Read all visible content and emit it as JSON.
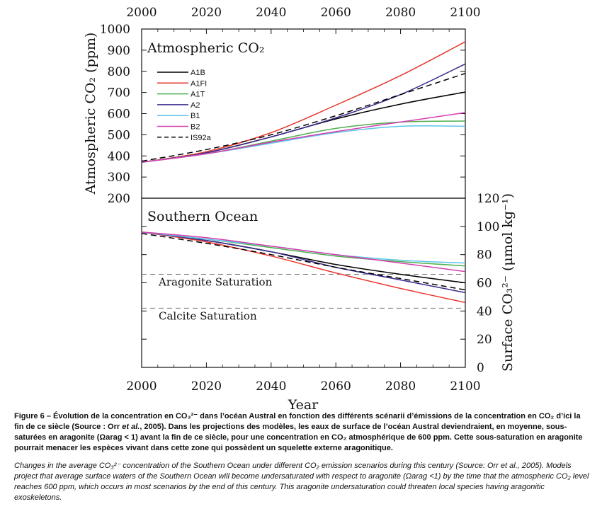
{
  "chart_data": [
    {
      "type": "line",
      "title": "Atmospheric CO₂",
      "ylabel": "Atmospheric CO₂ (ppm)",
      "xlabel": "",
      "xlim": [
        2000,
        2100
      ],
      "ylim": [
        200,
        1000
      ],
      "x_ticks": [
        "2000",
        "2020",
        "2040",
        "2060",
        "2080",
        "2100"
      ],
      "y_ticks": [
        "200",
        "300",
        "400",
        "500",
        "600",
        "700",
        "800",
        "900",
        "1000"
      ],
      "legend": "upper-left",
      "x": [
        2000,
        2020,
        2040,
        2060,
        2080,
        2100
      ],
      "series": [
        {
          "name": "A1B",
          "color": "#000000",
          "dash": false,
          "values": [
            370,
            415,
            490,
            575,
            645,
            702
          ]
        },
        {
          "name": "A1FI",
          "color": "#e8352e",
          "dash": false,
          "values": [
            370,
            420,
            510,
            640,
            780,
            940
          ]
        },
        {
          "name": "A1T",
          "color": "#4caf50",
          "dash": false,
          "values": [
            370,
            410,
            470,
            530,
            560,
            565
          ]
        },
        {
          "name": "A2",
          "color": "#3a2a8c",
          "dash": false,
          "values": [
            370,
            415,
            490,
            580,
            690,
            835
          ]
        },
        {
          "name": "B1",
          "color": "#5ec5e8",
          "dash": false,
          "values": [
            370,
            410,
            460,
            510,
            540,
            540
          ]
        },
        {
          "name": "B2",
          "color": "#d63fb0",
          "dash": false,
          "values": [
            370,
            410,
            465,
            515,
            560,
            605
          ]
        },
        {
          "name": "IS92a",
          "color": "#000000",
          "dash": true,
          "values": [
            375,
            430,
            500,
            590,
            690,
            790
          ]
        }
      ]
    },
    {
      "type": "line",
      "title": "Southern Ocean",
      "xlabel": "Year",
      "ylabel": "Surface CO₃²⁻ (μmol kg⁻¹)",
      "xlim": [
        2000,
        2100
      ],
      "ylim": [
        0,
        120
      ],
      "x_ticks": [
        "2000",
        "2020",
        "2040",
        "2060",
        "2080",
        "2100"
      ],
      "y_ticks": [
        "0",
        "20",
        "40",
        "60",
        "80",
        "100",
        "120"
      ],
      "x": [
        2000,
        2020,
        2040,
        2060,
        2080,
        2100
      ],
      "series": [
        {
          "name": "A1B",
          "color": "#000000",
          "dash": false,
          "values": [
            96,
            90,
            82,
            73,
            66,
            60
          ]
        },
        {
          "name": "A1FI",
          "color": "#e8352e",
          "dash": false,
          "values": [
            96,
            89,
            79,
            67,
            56,
            46
          ]
        },
        {
          "name": "A1T",
          "color": "#4caf50",
          "dash": false,
          "values": [
            96,
            91,
            85,
            79,
            75,
            72
          ]
        },
        {
          "name": "A2",
          "color": "#3a2a8c",
          "dash": false,
          "values": [
            96,
            90,
            82,
            71,
            62,
            53
          ]
        },
        {
          "name": "B1",
          "color": "#5ec5e8",
          "dash": false,
          "values": [
            96,
            91,
            86,
            80,
            76,
            74
          ]
        },
        {
          "name": "B2",
          "color": "#d63fb0",
          "dash": false,
          "values": [
            96,
            92,
            86,
            80,
            74,
            68
          ]
        },
        {
          "name": "IS92a",
          "color": "#000000",
          "dash": true,
          "values": [
            95,
            88,
            80,
            71,
            63,
            55
          ]
        }
      ],
      "reference_lines": [
        {
          "label": "Aragonite Saturation",
          "value": 66
        },
        {
          "label": "Calcite Saturation",
          "value": 42
        }
      ]
    }
  ],
  "caption": {
    "fr_bold": "Figure 6 – Évolution de la concentration en CO₃²⁻ dans l’océan Austral en fonction des différents scénarii d’émissions de la concentration en CO₂ d’ici la fin de ce siècle (Source : Orr ",
    "fr_italic": "et al.",
    "fr_rest": ", 2005). Dans les projections des modèles, les eaux de surface de l’océan Austral deviendraient, en moyenne, sous-saturées en aragonite (Ωarag < 1) avant la fin de ce siècle, pour une concentration en CO₂ atmosphérique de 600 ppm. Cette sous-saturation en aragonite pourrait menacer les espèces vivant dans cette zone qui possèdent un squelette externe aragonitique.",
    "en": "Changes in the average CO₃²⁻ concentration of the Southern Ocean under different CO₂ emission scenarios during this century (Source: Orr et al., 2005). Models project that average surface waters of the Southern Ocean will become undersaturated with respect to aragonite (Ωarag <1) by the time that the atmospheric CO₂ level reaches 600 ppm, which occurs in most scenarios by the end of this century. This aragonite undersaturation could threaten local species having aragonitic exoskeletons."
  }
}
